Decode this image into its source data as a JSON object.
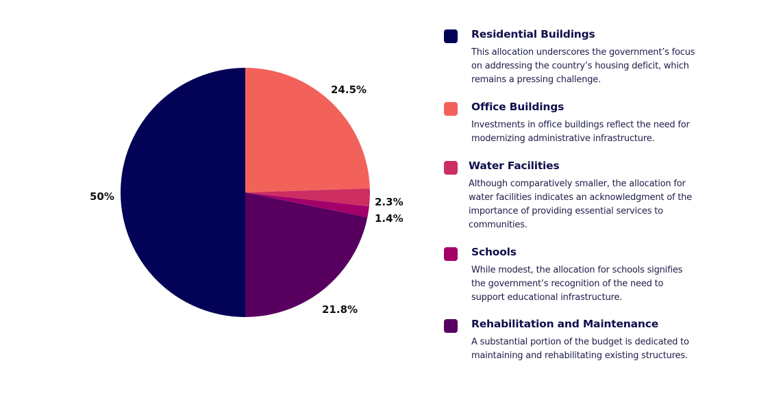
{
  "chart_data": {
    "type": "pie",
    "title": "",
    "slices": [
      {
        "name": "Office Buildings",
        "value": 24.5,
        "label": "24.5%",
        "color": "#f2625b"
      },
      {
        "name": "Water Facilities",
        "value": 2.3,
        "label": "2.3%",
        "color": "#cc2e62"
      },
      {
        "name": "Schools",
        "value": 1.4,
        "label": "1.4%",
        "color": "#a3006a"
      },
      {
        "name": "Rehabilitation and Maintenance",
        "value": 21.8,
        "label": "21.8%",
        "color": "#570060"
      },
      {
        "name": "Residential Buildings",
        "value": 50,
        "label": "50%",
        "color": "#020256"
      }
    ],
    "start_angle": "12 o'clock, clockwise"
  },
  "legend": {
    "items": [
      {
        "title": "Residential Buildings",
        "color": "#020256",
        "description": "This allocation underscores the government’s focus on addressing the country’s housing deficit, which remains a pressing challenge."
      },
      {
        "title": "Office Buildings",
        "color": "#f2625b",
        "description": "Investments in office buildings reflect the need for modernizing administrative infrastructure."
      },
      {
        "title": "Water Facilities",
        "color": "#cc2e62",
        "description": "Although comparatively smaller, the allocation for water facilities indicates an acknowledgment of the importance of providing essential services to communities."
      },
      {
        "title": "Schools",
        "color": "#a3006a",
        "description": "While modest, the allocation for schools signifies the government’s recognition of the need to support educational infrastructure."
      },
      {
        "title": "Rehabilitation and Maintenance",
        "color": "#570060",
        "description": "A substantial portion of the budget is dedicated to maintaining and rehabilitating existing structures."
      }
    ]
  }
}
